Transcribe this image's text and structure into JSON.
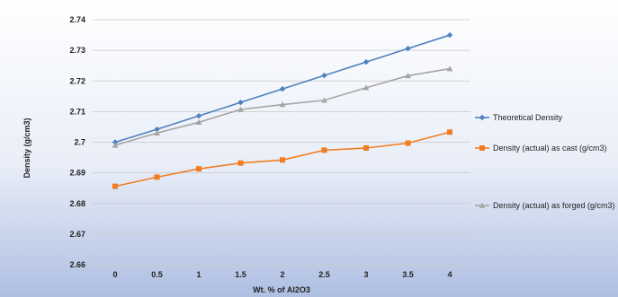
{
  "chart_data": {
    "type": "line",
    "title": "",
    "xlabel": "Wt. % of Al2O3",
    "ylabel": "Density (g/cm3)",
    "x": [
      "0",
      "0.5",
      "1",
      "1.5",
      "2",
      "2.5",
      "3",
      "3.5",
      "4"
    ],
    "ylim": [
      2.66,
      2.74
    ],
    "yticks": [
      "2.66",
      "2.67",
      "2.68",
      "2.69",
      "2.7",
      "2.71",
      "2.72",
      "2.73",
      "2.74"
    ],
    "grid": true,
    "legend_position": "right",
    "series": [
      {
        "name": "Theoretical Density",
        "color": "#4f81bd",
        "marker": "diamond",
        "values": [
          2.7,
          2.7042,
          2.7086,
          2.713,
          2.7174,
          2.7218,
          2.7262,
          2.7306,
          2.735
        ]
      },
      {
        "name": "Density (actual) as cast (g/cm3)",
        "color": "#f07d20",
        "marker": "square",
        "values": [
          2.6856,
          2.6886,
          2.6913,
          2.6932,
          2.6942,
          2.6974,
          2.6981,
          2.6997,
          2.7033
        ]
      },
      {
        "name": "Density (actual) as forged (g/cm3)",
        "color": "#a5a5a5",
        "marker": "triangle",
        "values": [
          2.699,
          2.703,
          2.7065,
          2.7107,
          2.7123,
          2.7137,
          2.7178,
          2.7217,
          2.724
        ]
      }
    ]
  }
}
